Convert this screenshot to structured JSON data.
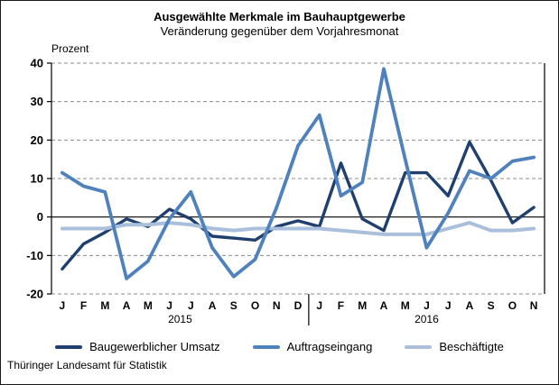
{
  "header": {
    "title": "Ausgewählte Merkmale im Bauhauptgewerbe",
    "subtitle": "Veränderung gegenüber dem Vorjahresmonat"
  },
  "axis": {
    "y_unit_label": "Prozent"
  },
  "footer": {
    "source": "Thüringer Landesamt für Statistik"
  },
  "chart_data": {
    "type": "line",
    "title": "Ausgewählte Merkmale im Bauhauptgewerbe",
    "subtitle": "Veränderung gegenüber dem Vorjahresmonat",
    "ylabel": "Prozent",
    "ylim": [
      -20,
      40
    ],
    "ytick_step": 10,
    "grid": "horizontal-dashed, solid zero line",
    "legend_position": "bottom",
    "categories": [
      "J",
      "F",
      "M",
      "A",
      "M",
      "J",
      "J",
      "A",
      "S",
      "O",
      "N",
      "D",
      "J",
      "F",
      "M",
      "A",
      "M",
      "J",
      "J",
      "A",
      "S",
      "O",
      "N"
    ],
    "year_groups": [
      {
        "label": "2015",
        "months": 12
      },
      {
        "label": "2016",
        "months": 11
      }
    ],
    "series": [
      {
        "name": "Baugewerblicher Umsatz",
        "color": "#1F3F6E",
        "values": [
          -13.5,
          -7,
          -4,
          -0.5,
          -2.5,
          2,
          -0.5,
          -5,
          -5.5,
          -6,
          -2.5,
          -1,
          -2.5,
          14,
          -0.5,
          -3.5,
          11.5,
          11.5,
          5.5,
          19.5,
          9.5,
          -1.5,
          2.5
        ]
      },
      {
        "name": "Auftragseingang",
        "color": "#4F81BD",
        "values": [
          11.5,
          8,
          6.5,
          -16,
          -11.5,
          -0.5,
          6.5,
          -8,
          -15.5,
          -11,
          2.5,
          18.5,
          26.5,
          5.5,
          9,
          38.5,
          15,
          -8,
          1,
          12,
          10,
          14.5,
          15.5
        ]
      },
      {
        "name": "Beschäftigte",
        "color": "#AABFDC",
        "values": [
          -3,
          -3,
          -3,
          -2,
          -2,
          -1.5,
          -2,
          -3,
          -3.5,
          -3,
          -3,
          -3,
          -3,
          -3.5,
          -4,
          -4.5,
          -4.5,
          -4.5,
          -3,
          -1.5,
          -3.5,
          -3.5,
          -3
        ]
      }
    ],
    "colors": {
      "gridline": "#8c8c8c",
      "zero_line": "#000000",
      "axis_line": "#000000",
      "text": "#000000"
    }
  }
}
